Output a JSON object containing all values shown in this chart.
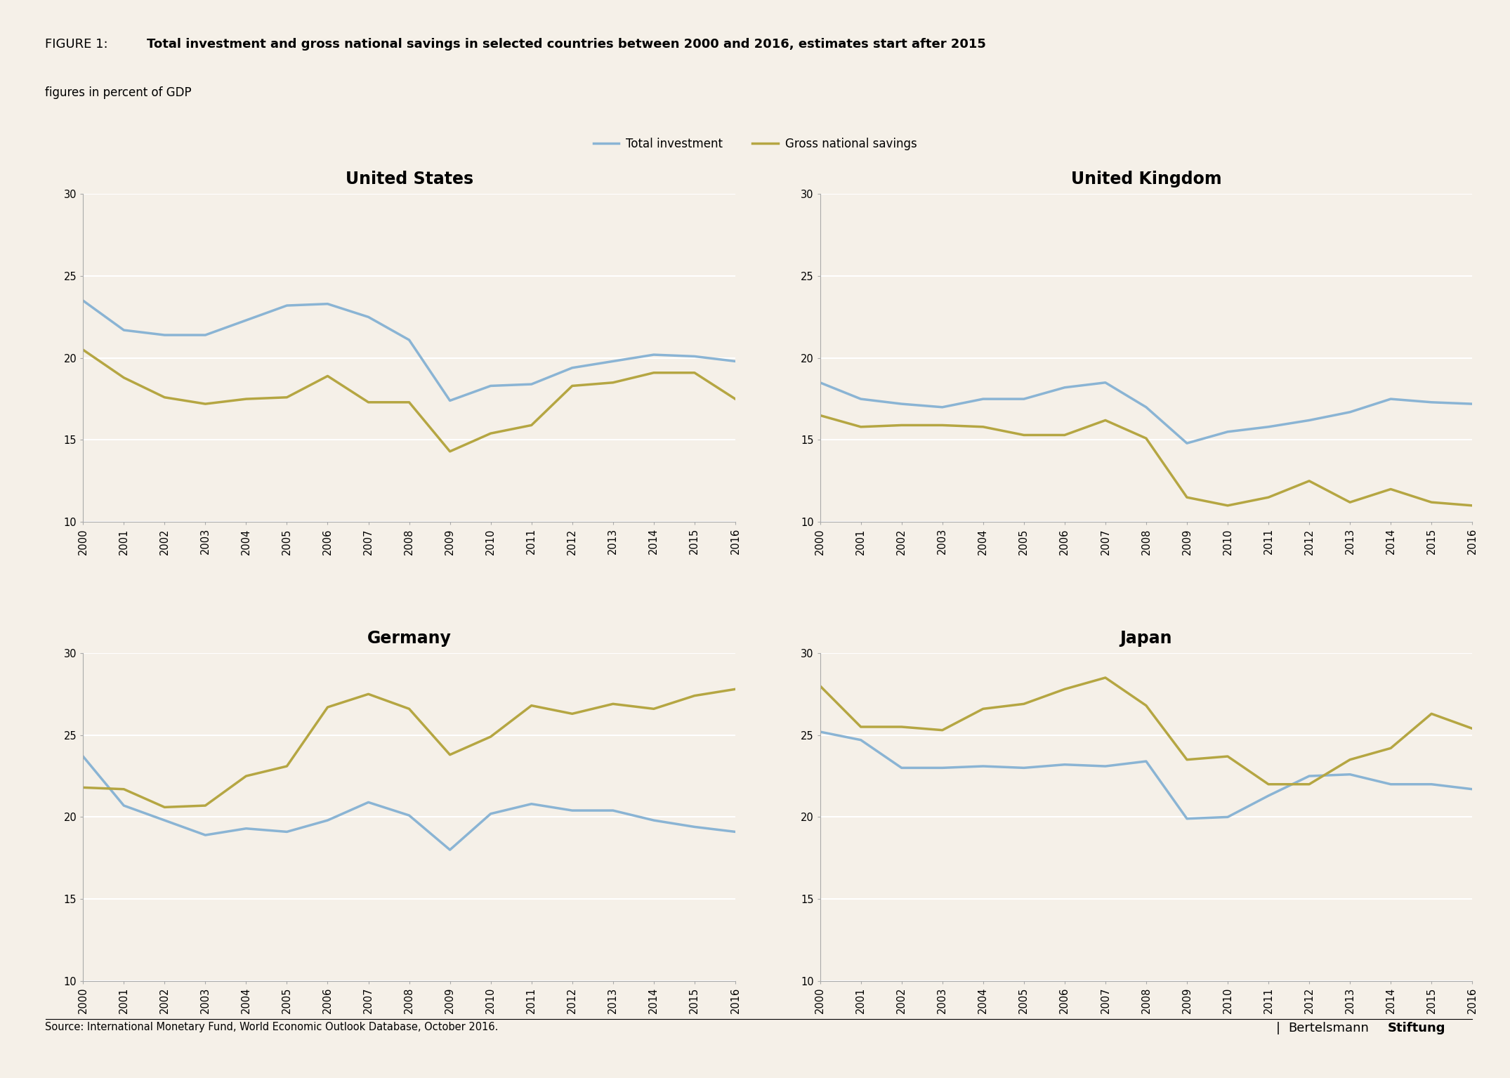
{
  "years": [
    2000,
    2001,
    2002,
    2003,
    2004,
    2005,
    2006,
    2007,
    2008,
    2009,
    2010,
    2011,
    2012,
    2013,
    2014,
    2015,
    2016
  ],
  "countries": [
    "United States",
    "United Kingdom",
    "Germany",
    "Japan"
  ],
  "total_investment": {
    "United States": [
      23.5,
      21.7,
      21.4,
      21.4,
      22.3,
      23.2,
      23.3,
      22.5,
      21.1,
      17.4,
      18.3,
      18.4,
      19.4,
      19.8,
      20.2,
      20.1,
      19.8
    ],
    "United Kingdom": [
      18.5,
      17.5,
      17.2,
      17.0,
      17.5,
      17.5,
      18.2,
      18.5,
      17.0,
      14.8,
      15.5,
      15.8,
      16.2,
      16.7,
      17.5,
      17.3,
      17.2
    ],
    "Germany": [
      23.7,
      20.7,
      19.8,
      18.9,
      19.3,
      19.1,
      19.8,
      20.9,
      20.1,
      18.0,
      20.2,
      20.8,
      20.4,
      20.4,
      19.8,
      19.4,
      19.1
    ],
    "Japan": [
      25.2,
      24.7,
      23.0,
      23.0,
      23.1,
      23.0,
      23.2,
      23.1,
      23.4,
      19.9,
      20.0,
      21.3,
      22.5,
      22.6,
      22.0,
      22.0,
      21.7
    ]
  },
  "gross_national_savings": {
    "United States": [
      20.5,
      18.8,
      17.6,
      17.2,
      17.5,
      17.6,
      18.9,
      17.3,
      17.3,
      14.3,
      15.4,
      15.9,
      18.3,
      18.5,
      19.1,
      19.1,
      17.5
    ],
    "United Kingdom": [
      16.5,
      15.8,
      15.9,
      15.9,
      15.8,
      15.3,
      15.3,
      16.2,
      15.1,
      11.5,
      11.0,
      11.5,
      12.5,
      11.2,
      12.0,
      11.2,
      11.0
    ],
    "Germany": [
      21.8,
      21.7,
      20.6,
      20.7,
      22.5,
      23.1,
      26.7,
      27.5,
      26.6,
      23.8,
      24.9,
      26.8,
      26.3,
      26.9,
      26.6,
      27.4,
      27.8
    ],
    "Japan": [
      28.0,
      25.5,
      25.5,
      25.3,
      26.6,
      26.9,
      27.8,
      28.5,
      26.8,
      23.5,
      23.7,
      22.0,
      22.0,
      23.5,
      24.2,
      26.3,
      25.4
    ]
  },
  "investment_color": "#8ab4d4",
  "savings_color": "#b5a642",
  "background_color": "#f5f0e8",
  "plot_bg_color": "#f5f0e8",
  "ylim": [
    10,
    30
  ],
  "yticks": [
    10,
    15,
    20,
    25,
    30
  ],
  "title_prefix": "FIGURE 1: ",
  "title_bold": "Total investment and gross national savings in selected countries between 2000 and 2016, estimates start after 2015",
  "subtitle": "figures in percent of GDP",
  "legend_investment": "Total investment",
  "legend_savings": "Gross national savings",
  "source": "Source: International Monetary Fund, World Economic Outlook Database, October 2016.",
  "line_width": 2.5
}
